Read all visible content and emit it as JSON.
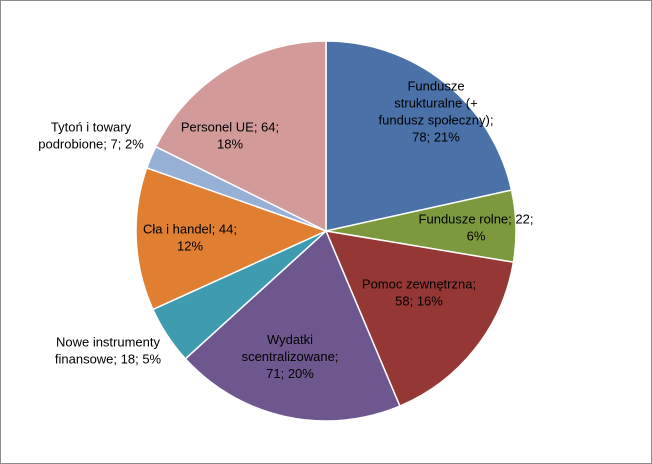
{
  "chart_data": {
    "type": "pie",
    "title": "",
    "slices": [
      {
        "name": "Fundusze strukturalne (+ fundusz społeczny)",
        "value": 78,
        "percent": "21%",
        "color": "#4a72a8",
        "label_lines": [
          "Fundusze",
          "strukturalne (+",
          "fundusz społeczny);",
          "78; 21%"
        ]
      },
      {
        "name": "Fundusze rolne",
        "value": 22,
        "percent": "6%",
        "color": "#7c9a3d",
        "label_lines": [
          "Fundusze rolne; 22;",
          "6%"
        ]
      },
      {
        "name": "Pomoc zewnętrzna",
        "value": 58,
        "percent": "16%",
        "color": "#953735",
        "label_lines": [
          "Pomoc zewnętrzna;",
          "58; 16%"
        ]
      },
      {
        "name": "Wydatki scentralizowane",
        "value": 71,
        "percent": "20%",
        "color": "#6e578f",
        "label_lines": [
          "Wydatki",
          "scentralizowane;",
          "71; 20%"
        ]
      },
      {
        "name": "Nowe instrumenty finansowe",
        "value": 18,
        "percent": "5%",
        "color": "#3f9bb0",
        "label_lines": [
          "Nowe instrumenty",
          "finansowe; 18; 5%"
        ]
      },
      {
        "name": "Cła i handel",
        "value": 44,
        "percent": "12%",
        "color": "#e07f32",
        "label_lines": [
          "Cła i handel; 44;",
          "12%"
        ]
      },
      {
        "name": "Tytoń i towary podrobione",
        "value": 7,
        "percent": "2%",
        "color": "#97b0d6",
        "label_lines": [
          "Tytoń i towary",
          "podrobione; 7; 2%"
        ]
      },
      {
        "name": "Personel UE",
        "value": 64,
        "percent": "18%",
        "color": "#d39a9a",
        "label_lines": [
          "Personel UE; 64;",
          "18%"
        ]
      }
    ]
  }
}
